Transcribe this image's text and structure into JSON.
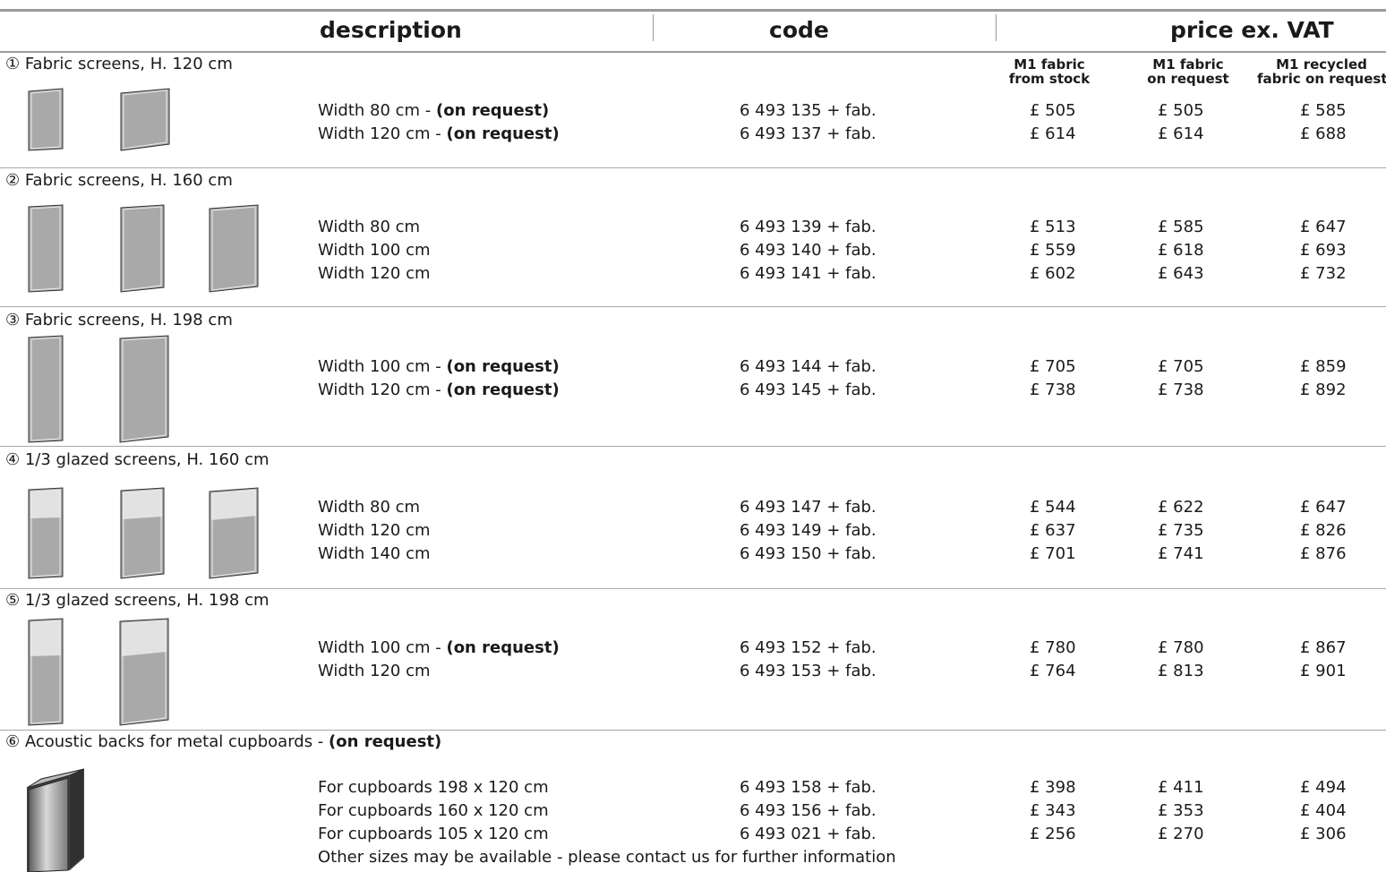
{
  "header": {
    "description": "description",
    "code": "code",
    "price": "price ex. VAT",
    "sub": [
      "M1 fabric\nfrom stock",
      "M1 fabric\non request",
      "M1 recycled\nfabric on request"
    ]
  },
  "sections": [
    {
      "title": "① Fabric screens, H. 120 cm",
      "rows": [
        {
          "desc": "Width 80 cm - ",
          "desc_bold": "(on request)",
          "code": "6 493 135 + fab.",
          "p1": "£  505",
          "p2": "£  505",
          "p3": "£  585"
        },
        {
          "desc": "Width 120 cm - ",
          "desc_bold": "(on request)",
          "code": "6 493 137 + fab.",
          "p1": "£  614",
          "p2": "£  614",
          "p3": "£  688"
        }
      ]
    },
    {
      "title": "② Fabric screens, H. 160 cm",
      "rows": [
        {
          "desc": "Width 80 cm",
          "desc_bold": "",
          "code": "6 493 139 + fab.",
          "p1": "£  513",
          "p2": "£  585",
          "p3": "£  647"
        },
        {
          "desc": "Width 100 cm",
          "desc_bold": "",
          "code": "6 493 140 + fab.",
          "p1": "£  559",
          "p2": "£  618",
          "p3": "£  693"
        },
        {
          "desc": "Width 120 cm",
          "desc_bold": "",
          "code": "6 493 141 + fab.",
          "p1": "£  602",
          "p2": "£  643",
          "p3": "£  732"
        }
      ]
    },
    {
      "title": "③ Fabric screens, H. 198 cm",
      "rows": [
        {
          "desc": "Width 100 cm - ",
          "desc_bold": "(on request)",
          "code": "6 493 144 + fab.",
          "p1": "£  705",
          "p2": "£  705",
          "p3": "£  859"
        },
        {
          "desc": "Width 120 cm - ",
          "desc_bold": "(on request)",
          "code": "6 493 145 + fab.",
          "p1": "£  738",
          "p2": "£  738",
          "p3": "£  892"
        }
      ]
    },
    {
      "title": "④ 1/3 glazed screens, H. 160 cm",
      "rows": [
        {
          "desc": "Width 80 cm",
          "desc_bold": "",
          "code": "6 493 147 + fab.",
          "p1": "£  544",
          "p2": "£  622",
          "p3": "£  647"
        },
        {
          "desc": "Width 120 cm",
          "desc_bold": "",
          "code": "6 493 149 + fab.",
          "p1": "£  637",
          "p2": "£  735",
          "p3": "£  826"
        },
        {
          "desc": "Width 140 cm",
          "desc_bold": "",
          "code": "6 493 150 + fab.",
          "p1": "£  701",
          "p2": "£  741",
          "p3": "£  876"
        }
      ]
    },
    {
      "title": "⑤ 1/3 glazed screens, H. 198 cm",
      "rows": [
        {
          "desc": "Width 100 cm - ",
          "desc_bold": "(on request)",
          "code": "6 493 152 + fab.",
          "p1": "£  780",
          "p2": "£  780",
          "p3": "£  867"
        },
        {
          "desc": "Width 120 cm",
          "desc_bold": "",
          "code": "6 493 153 + fab.",
          "p1": "£  764",
          "p2": "£  813",
          "p3": "£  901"
        }
      ]
    },
    {
      "title": "⑥ Acoustic backs for metal cupboards - ",
      "title_bold": "(on request)",
      "rows": [
        {
          "desc": "For cupboards 198 x 120 cm",
          "desc_bold": "",
          "code": "6 493 158 + fab.",
          "p1": "£  398",
          "p2": "£  411",
          "p3": "£  494"
        },
        {
          "desc": "For cupboards 160 x 120 cm",
          "desc_bold": "",
          "code": "6 493 156 + fab.",
          "p1": "£  343",
          "p2": "£  353",
          "p3": "£  404"
        },
        {
          "desc": "For cupboards 105 x 120 cm",
          "desc_bold": "",
          "code": "6 493 021 + fab.",
          "p1": "£  256",
          "p2": "£  270",
          "p3": "£  306"
        }
      ],
      "note": "Other sizes may be available - please contact us for further information"
    }
  ],
  "colors": {
    "rule": "#9a9a9a",
    "screen_fill": "#a9a9a9",
    "glass_fill": "#e2e2e2"
  }
}
